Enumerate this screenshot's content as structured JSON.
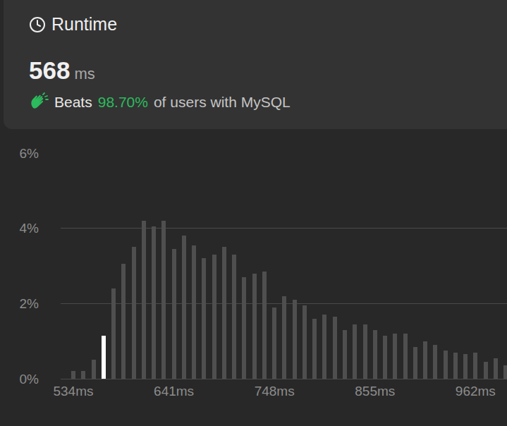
{
  "header": {
    "title": "Runtime",
    "runtime": {
      "value": 568,
      "unit": "ms"
    },
    "beats": {
      "label": "Beats",
      "value": "98.70%",
      "suffix": "of users with MySQL"
    }
  },
  "chart_data": {
    "type": "bar",
    "x": [
      534,
      544.7,
      555.4,
      566.1,
      576.8,
      587.5,
      598.2,
      608.9,
      619.6,
      630.3,
      641,
      651.7,
      662.4,
      673.1,
      683.8,
      694.5,
      705.2,
      715.9,
      726.6,
      737.3,
      748,
      758.7,
      769.4,
      780.1,
      790.8,
      801.5,
      812.2,
      822.9,
      833.6,
      844.3,
      855,
      865.7,
      876.4,
      887.1,
      897.8,
      908.5,
      919.2,
      929.9,
      940.6,
      951.3,
      962,
      972.7,
      983.4,
      994.1
    ],
    "values": [
      0.2,
      0.2,
      0.5,
      1.15,
      2.4,
      3.05,
      3.5,
      4.2,
      4.05,
      4.2,
      3.45,
      3.8,
      3.55,
      3.2,
      3.3,
      3.5,
      3.3,
      2.7,
      2.8,
      2.85,
      1.9,
      2.2,
      2.1,
      1.95,
      1.6,
      1.7,
      1.65,
      1.3,
      1.45,
      1.45,
      1.3,
      1.15,
      1.2,
      1.2,
      0.85,
      1.0,
      0.9,
      0.75,
      0.7,
      0.65,
      0.7,
      0.45,
      0.55,
      0.35
    ],
    "colors": [
      "#4f4f4f",
      "#4f4f4f",
      "#4f4f4f",
      "#ffffff",
      "#4f4f4f",
      "#4f4f4f",
      "#4f4f4f",
      "#4f4f4f",
      "#4f4f4f",
      "#4f4f4f",
      "#4f4f4f",
      "#4f4f4f",
      "#4f4f4f",
      "#4f4f4f",
      "#4f4f4f",
      "#4f4f4f",
      "#4f4f4f",
      "#4f4f4f",
      "#4f4f4f",
      "#4f4f4f",
      "#4f4f4f",
      "#4f4f4f",
      "#4f4f4f",
      "#4f4f4f",
      "#4f4f4f",
      "#4f4f4f",
      "#4f4f4f",
      "#4f4f4f",
      "#4f4f4f",
      "#4f4f4f",
      "#4f4f4f",
      "#4f4f4f",
      "#4f4f4f",
      "#4f4f4f",
      "#4f4f4f",
      "#4f4f4f",
      "#4f4f4f",
      "#4f4f4f",
      "#4f4f4f",
      "#4f4f4f",
      "#4f4f4f",
      "#4f4f4f",
      "#4f4f4f",
      "#4f4f4f"
    ],
    "xlim": [
      520.5,
      995.5
    ],
    "xticks": [
      {
        "value": 534,
        "label": "534ms"
      },
      {
        "value": 641,
        "label": "641ms"
      },
      {
        "value": 748,
        "label": "748ms"
      },
      {
        "value": 855,
        "label": "855ms"
      },
      {
        "value": 962,
        "label": "962ms"
      }
    ],
    "ylim": [
      0,
      6
    ],
    "yticks": [
      {
        "value": 0,
        "label": "0%"
      },
      {
        "value": 2,
        "label": "2%"
      },
      {
        "value": 4,
        "label": "4%"
      },
      {
        "value": 6,
        "label": "6%"
      }
    ],
    "grid": true
  }
}
